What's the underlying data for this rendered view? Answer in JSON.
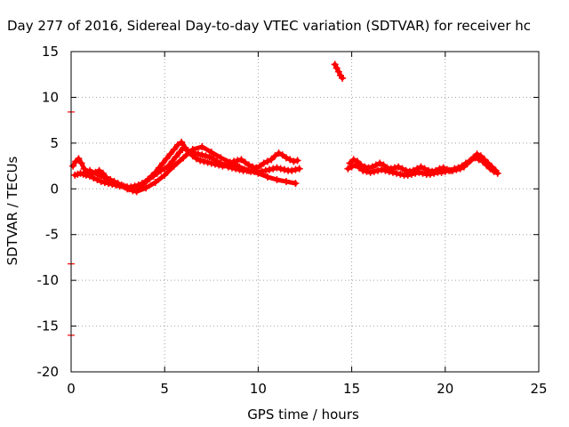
{
  "chart_data": {
    "type": "scatter",
    "title": "Day 277 of 2016, Sidereal Day-to-day VTEC variation (SDTVAR) for receiver hc",
    "xlabel": "GPS time / hours",
    "ylabel": "SDTVAR / TECUs",
    "xlim": [
      0,
      25
    ],
    "ylim": [
      -20,
      15
    ],
    "xticks": [
      "0",
      "5",
      "10",
      "15",
      "20",
      "25"
    ],
    "yticks": [
      "-20",
      "-15",
      "-10",
      "-5",
      "0",
      "5",
      "10",
      "15"
    ],
    "grid": true,
    "legend": "none",
    "marker": "+",
    "color": "#ff0000",
    "reference_marks": [
      {
        "x": 0.0,
        "y": 8.4
      },
      {
        "x": 0.0,
        "y": -8.2
      },
      {
        "x": 0.0,
        "y": -16.0
      }
    ],
    "series": [
      {
        "x": [
          0.2,
          0.35,
          0.5,
          0.65,
          0.8,
          1.0,
          1.2,
          1.4,
          1.6,
          1.8,
          2.0,
          2.2,
          2.4,
          2.6,
          2.8,
          3.0,
          3.2,
          3.4,
          3.6,
          3.8,
          4.0,
          4.2,
          4.4,
          4.6,
          4.8,
          5.0,
          5.2,
          5.4,
          5.6,
          5.8,
          6.0,
          6.2,
          6.4,
          6.6,
          6.8,
          7.0,
          7.2,
          7.4,
          7.6,
          7.8,
          8.0,
          8.2,
          8.4,
          8.6,
          8.8,
          9.0,
          9.2,
          9.4,
          9.6,
          9.8,
          10.0,
          10.2,
          10.4,
          10.6,
          10.8,
          11.0,
          11.2,
          11.4,
          11.6,
          11.8,
          12.0,
          12.2
        ],
        "y": [
          1.5,
          1.6,
          1.7,
          1.6,
          1.5,
          1.4,
          1.2,
          1.0,
          0.8,
          0.7,
          0.6,
          0.5,
          0.4,
          0.3,
          0.3,
          0.2,
          0.2,
          0.3,
          0.4,
          0.6,
          0.8,
          1.1,
          1.4,
          1.7,
          2.0,
          2.2,
          2.5,
          3.0,
          3.5,
          4.0,
          4.5,
          4.2,
          4.0,
          3.9,
          3.8,
          3.7,
          3.6,
          3.5,
          3.3,
          3.0,
          2.8,
          2.6,
          2.4,
          2.3,
          2.2,
          2.1,
          2.0,
          2.0,
          1.9,
          1.9,
          1.8,
          1.9,
          2.0,
          2.1,
          2.2,
          2.3,
          2.2,
          2.1,
          2.0,
          2.0,
          2.1,
          2.2
        ]
      },
      {
        "x": [
          0.1,
          0.25,
          0.4,
          0.55,
          0.7,
          0.9,
          1.1,
          1.3,
          1.5,
          1.7,
          1.9,
          2.1,
          2.3,
          2.5,
          2.7,
          2.9,
          3.1,
          3.3,
          3.5,
          3.7,
          3.9,
          4.1,
          4.3,
          4.5,
          4.7,
          4.9,
          5.1,
          5.3,
          5.5,
          5.7,
          5.9,
          6.1,
          6.3,
          6.5,
          6.7,
          6.9,
          7.1,
          7.3,
          7.5,
          7.7,
          7.9,
          8.1,
          8.3,
          8.5,
          8.7,
          8.9,
          9.1,
          9.3,
          9.5,
          9.7,
          9.9,
          10.1,
          10.3,
          10.5,
          10.7,
          10.9,
          11.1,
          11.3,
          11.5,
          11.7,
          11.9,
          12.1
        ],
        "y": [
          2.5,
          3.0,
          3.3,
          2.8,
          2.2,
          1.8,
          1.6,
          1.8,
          2.0,
          1.7,
          1.2,
          1.0,
          0.8,
          0.6,
          0.4,
          0.2,
          0.0,
          -0.2,
          0.0,
          0.2,
          0.6,
          1.0,
          1.4,
          1.8,
          2.3,
          2.8,
          3.3,
          3.8,
          4.3,
          4.8,
          5.1,
          4.5,
          4.0,
          3.6,
          3.3,
          3.1,
          3.0,
          2.9,
          2.8,
          2.7,
          2.6,
          2.5,
          2.6,
          2.8,
          3.0,
          3.1,
          3.2,
          2.9,
          2.6,
          2.4,
          2.3,
          2.5,
          2.8,
          3.0,
          3.2,
          3.6,
          3.9,
          3.7,
          3.4,
          3.2,
          3.0,
          3.1
        ]
      },
      {
        "x": [
          1.0,
          1.5,
          2.0,
          2.5,
          3.0,
          3.5,
          4.0,
          4.5,
          5.0,
          5.5,
          6.0,
          6.5,
          7.0,
          7.5,
          8.0,
          8.5,
          9.0,
          9.5,
          10.0,
          10.5,
          11.0,
          11.5,
          12.0
        ],
        "y": [
          2.0,
          1.5,
          1.0,
          0.5,
          0.0,
          -0.3,
          0.1,
          0.7,
          1.5,
          2.5,
          3.4,
          4.3,
          4.6,
          4.0,
          3.4,
          2.9,
          2.4,
          2.0,
          1.7,
          1.3,
          1.0,
          0.8,
          0.6
        ]
      },
      {
        "x": [
          14.1,
          14.2,
          14.3,
          14.4,
          14.5
        ],
        "y": [
          13.6,
          13.2,
          12.8,
          12.4,
          12.1
        ]
      },
      {
        "x": [
          14.8,
          15.0,
          15.2,
          15.4,
          15.6,
          15.8,
          16.0,
          16.2,
          16.4,
          16.6,
          16.8,
          17.0,
          17.2,
          17.4,
          17.6,
          17.8,
          18.0,
          18.2,
          18.4,
          18.6,
          18.8,
          19.0,
          19.2,
          19.4,
          19.6,
          19.8,
          20.0,
          20.2,
          20.4,
          20.6,
          20.8,
          21.0,
          21.2,
          21.4,
          21.6,
          21.8,
          22.0,
          22.2,
          22.4,
          22.6,
          22.8
        ],
        "y": [
          2.2,
          2.4,
          2.6,
          2.3,
          2.0,
          1.9,
          1.8,
          1.9,
          2.0,
          2.1,
          2.0,
          1.9,
          1.8,
          1.7,
          1.6,
          1.5,
          1.5,
          1.6,
          1.7,
          1.8,
          1.7,
          1.6,
          1.6,
          1.7,
          1.8,
          1.8,
          1.9,
          2.0,
          2.0,
          2.1,
          2.2,
          2.4,
          2.8,
          3.2,
          3.4,
          3.2,
          3.0,
          2.6,
          2.2,
          1.9,
          1.7
        ]
      },
      {
        "x": [
          14.9,
          15.1,
          15.3,
          15.5,
          15.7,
          15.9,
          16.1,
          16.3,
          16.5,
          16.7,
          16.9,
          17.1,
          17.3,
          17.5,
          17.7,
          17.9,
          18.1,
          18.3,
          18.5,
          18.7,
          18.9,
          19.1,
          19.3,
          19.5,
          19.7,
          19.9,
          20.1,
          20.3,
          20.5,
          20.7,
          20.9,
          21.1,
          21.3,
          21.5,
          21.7,
          21.9,
          22.1,
          22.3,
          22.5,
          22.7
        ],
        "y": [
          2.8,
          3.2,
          3.0,
          2.6,
          2.4,
          2.3,
          2.4,
          2.6,
          2.8,
          2.6,
          2.3,
          2.2,
          2.3,
          2.4,
          2.2,
          2.0,
          1.9,
          2.0,
          2.2,
          2.4,
          2.2,
          2.0,
          1.9,
          2.0,
          2.2,
          2.3,
          2.1,
          2.0,
          2.2,
          2.3,
          2.5,
          2.8,
          3.0,
          3.4,
          3.8,
          3.6,
          3.2,
          2.8,
          2.4,
          2.0
        ]
      }
    ]
  }
}
